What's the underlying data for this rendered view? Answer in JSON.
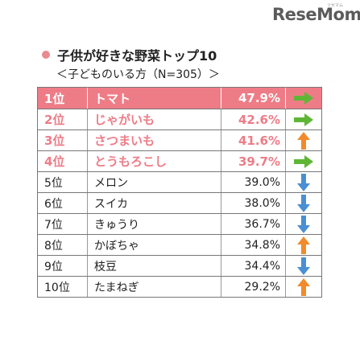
{
  "logo": {
    "text": "ReseMom",
    "tag": "リセマム"
  },
  "chart_data": {
    "type": "table",
    "title": "子供が好きな野菜トップ10",
    "subtitle": "＜子どものいる方（N=305）＞",
    "rows": [
      {
        "rank": "1位",
        "name": "トマト",
        "value": "47.9%",
        "trend": "right"
      },
      {
        "rank": "2位",
        "name": "じゃがいも",
        "value": "42.6%",
        "trend": "right"
      },
      {
        "rank": "3位",
        "name": "さつまいも",
        "value": "41.6%",
        "trend": "up"
      },
      {
        "rank": "4位",
        "name": "とうもろこし",
        "value": "39.7%",
        "trend": "right"
      },
      {
        "rank": "5位",
        "name": "メロン",
        "value": "39.0%",
        "trend": "down"
      },
      {
        "rank": "6位",
        "name": "スイカ",
        "value": "38.0%",
        "trend": "down"
      },
      {
        "rank": "7位",
        "name": "きゅうり",
        "value": "36.7%",
        "trend": "down"
      },
      {
        "rank": "8位",
        "name": "かぼちゃ",
        "value": "34.8%",
        "trend": "up"
      },
      {
        "rank": "9位",
        "name": "枝豆",
        "value": "34.4%",
        "trend": "down"
      },
      {
        "rank": "10位",
        "name": "たまねぎ",
        "value": "29.2%",
        "trend": "up"
      }
    ]
  },
  "colors": {
    "highlight": "#ee7c87",
    "arrow_right": "#5fb636",
    "arrow_up": "#f28a2c",
    "arrow_down": "#4a8fd4"
  }
}
